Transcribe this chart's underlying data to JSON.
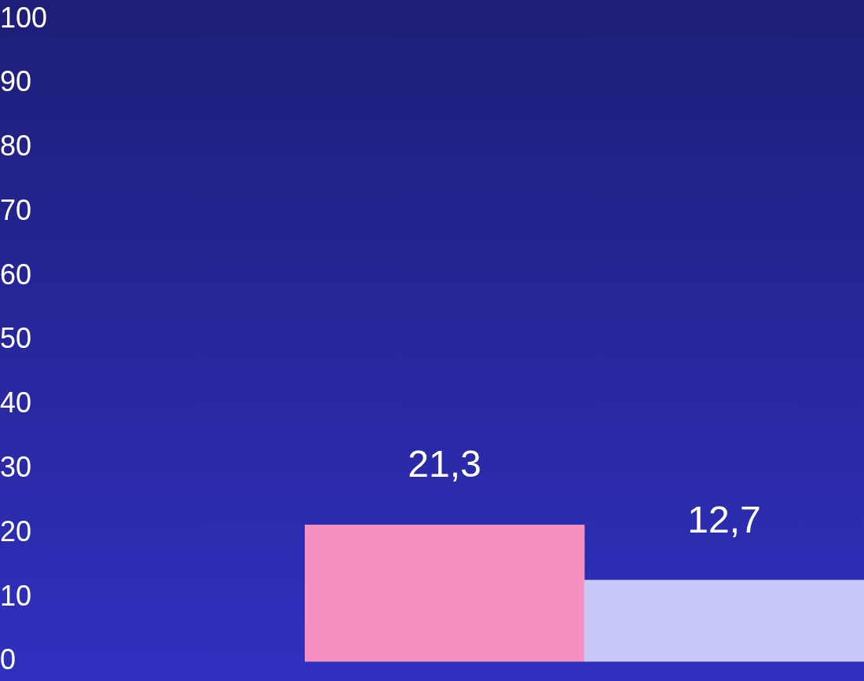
{
  "chart_data": {
    "type": "bar",
    "categories": [
      null,
      null
    ],
    "values": [
      21.3,
      12.7
    ],
    "colors": [
      "#f590c0",
      "#c8c8f8"
    ],
    "value_labels": [
      "21,3",
      "12,7"
    ],
    "ylim": [
      0,
      100
    ],
    "yticks": [
      0,
      10,
      20,
      30,
      40,
      50,
      60,
      70,
      80,
      90,
      100
    ],
    "grid": false,
    "legend": false
  }
}
